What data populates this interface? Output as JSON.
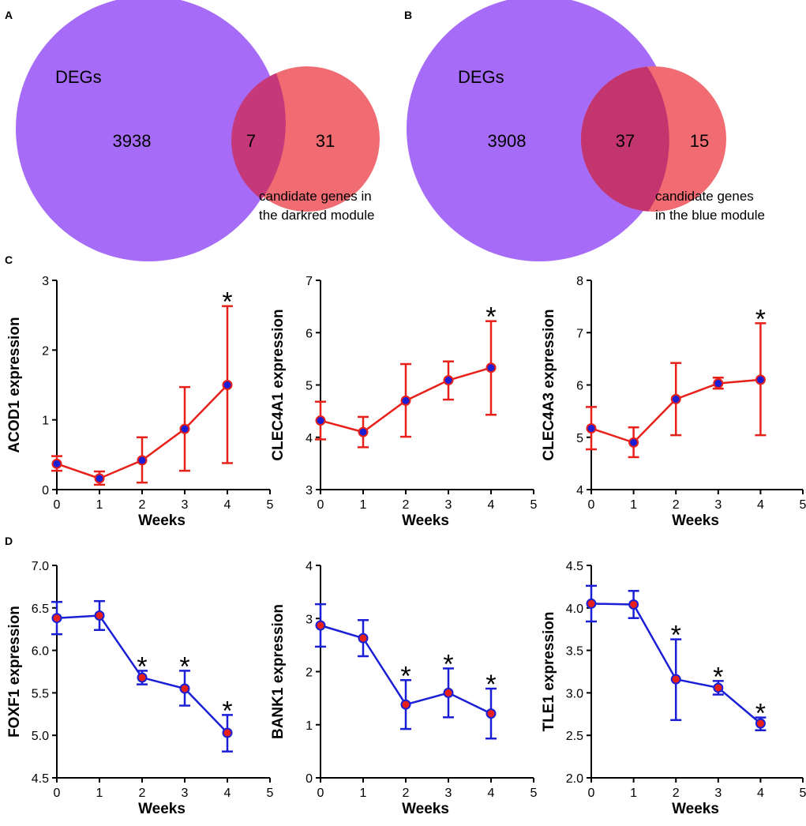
{
  "panels": {
    "A": "A",
    "B": "B",
    "C": "C",
    "D": "D"
  },
  "colors": {
    "purple": "#a66cf7",
    "salmon": "#f06c72",
    "overlap_a": "#c5397a",
    "overlap_b": "#c3356e",
    "red": "#e8201a",
    "blue": "#1a1fd6"
  },
  "venn": [
    {
      "panel": "A",
      "left_label": "DEGs",
      "left_count": "3938",
      "overlap_count": "7",
      "right_count": "31",
      "caption_line1": "candidate genes in",
      "caption_line2": "the darkred module"
    },
    {
      "panel": "B",
      "left_label": "DEGs",
      "left_count": "3908",
      "overlap_count": "37",
      "right_count": "15",
      "caption_line1": "candidate genes",
      "caption_line2": "in the blue module"
    }
  ],
  "chart_data": [
    {
      "type": "line",
      "panel": "C",
      "ylabel": "ACOD1 expression",
      "xlabel": "Weeks",
      "x": [
        0,
        1,
        2,
        3,
        4
      ],
      "series": [
        {
          "name": "ACOD1",
          "values": [
            0.37,
            0.16,
            0.42,
            0.87,
            1.5
          ],
          "err_upper": [
            0.48,
            0.26,
            0.75,
            1.47,
            2.63
          ],
          "err_lower": [
            0.27,
            0.07,
            0.1,
            0.27,
            0.38
          ]
        }
      ],
      "xlim": [
        0,
        5
      ],
      "ylim": [
        0,
        3
      ],
      "xticks": [
        "0",
        "1",
        "2",
        "3",
        "4",
        "5"
      ],
      "yticks": [
        "0",
        "1",
        "2",
        "3"
      ],
      "significant": [
        "",
        "",
        "",
        "",
        "*"
      ]
    },
    {
      "type": "line",
      "panel": "C",
      "ylabel": "CLEC4A1 expression",
      "xlabel": "Weeks",
      "x": [
        0,
        1,
        2,
        3,
        4
      ],
      "series": [
        {
          "name": "CLEC4A1",
          "values": [
            4.32,
            4.1,
            4.7,
            5.09,
            5.33
          ],
          "err_upper": [
            4.68,
            4.39,
            5.4,
            5.45,
            6.22
          ],
          "err_lower": [
            3.96,
            3.81,
            4.01,
            4.72,
            4.43
          ]
        }
      ],
      "xlim": [
        0,
        5
      ],
      "ylim": [
        3,
        7
      ],
      "xticks": [
        "0",
        "1",
        "2",
        "3",
        "4",
        "5"
      ],
      "yticks": [
        "3",
        "4",
        "5",
        "6",
        "7"
      ],
      "significant": [
        "",
        "",
        "",
        "",
        "*"
      ]
    },
    {
      "type": "line",
      "panel": "C",
      "ylabel": "CLEC4A3 expression",
      "xlabel": "Weeks",
      "x": [
        0,
        1,
        2,
        3,
        4
      ],
      "series": [
        {
          "name": "CLEC4A3",
          "values": [
            5.17,
            4.9,
            5.73,
            6.03,
            6.1
          ],
          "err_upper": [
            5.58,
            5.19,
            6.42,
            6.14,
            7.18
          ],
          "err_lower": [
            4.77,
            4.62,
            5.04,
            5.93,
            5.04
          ]
        }
      ],
      "xlim": [
        0,
        5
      ],
      "ylim": [
        4,
        8
      ],
      "xticks": [
        "0",
        "1",
        "2",
        "3",
        "4",
        "5"
      ],
      "yticks": [
        "4",
        "5",
        "6",
        "7",
        "8"
      ],
      "significant": [
        "",
        "",
        "",
        "",
        "*"
      ]
    },
    {
      "type": "line",
      "panel": "D",
      "ylabel": "FOXF1 expression",
      "xlabel": "Weeks",
      "x": [
        0,
        1,
        2,
        3,
        4
      ],
      "series": [
        {
          "name": "FOXF1",
          "values": [
            6.38,
            6.41,
            5.68,
            5.55,
            5.03
          ],
          "err_upper": [
            6.57,
            6.58,
            5.76,
            5.76,
            5.24
          ],
          "err_lower": [
            6.19,
            6.24,
            5.6,
            5.35,
            4.81
          ]
        }
      ],
      "xlim": [
        0,
        5
      ],
      "ylim": [
        4.5,
        7.0
      ],
      "xticks": [
        "0",
        "1",
        "2",
        "3",
        "4",
        "5"
      ],
      "yticks": [
        "4.5",
        "5.0",
        "5.5",
        "6.0",
        "6.5",
        "7.0"
      ],
      "significant": [
        "",
        "",
        "*",
        "*",
        "*"
      ]
    },
    {
      "type": "line",
      "panel": "D",
      "ylabel": "BANK1 expression",
      "xlabel": "Weeks",
      "x": [
        0,
        1,
        2,
        3,
        4
      ],
      "series": [
        {
          "name": "BANK1",
          "values": [
            2.87,
            2.63,
            1.38,
            1.6,
            1.21
          ],
          "err_upper": [
            3.27,
            2.97,
            1.84,
            2.06,
            1.68
          ],
          "err_lower": [
            2.47,
            2.29,
            0.92,
            1.14,
            0.74
          ]
        }
      ],
      "xlim": [
        0,
        5
      ],
      "ylim": [
        0,
        4
      ],
      "xticks": [
        "0",
        "1",
        "2",
        "3",
        "4",
        "5"
      ],
      "yticks": [
        "0",
        "1",
        "2",
        "3",
        "4"
      ],
      "significant": [
        "",
        "",
        "*",
        "*",
        "*"
      ]
    },
    {
      "type": "line",
      "panel": "D",
      "ylabel": "TLE1 expression",
      "xlabel": "Weeks",
      "x": [
        0,
        1,
        2,
        3,
        4
      ],
      "series": [
        {
          "name": "TLE1",
          "values": [
            4.05,
            4.04,
            3.16,
            3.06,
            2.64
          ],
          "err_upper": [
            4.26,
            4.2,
            3.63,
            3.14,
            2.71
          ],
          "err_lower": [
            3.84,
            3.88,
            2.68,
            2.98,
            2.56
          ]
        }
      ],
      "xlim": [
        0,
        5
      ],
      "ylim": [
        2.0,
        4.5
      ],
      "xticks": [
        "0",
        "1",
        "2",
        "3",
        "4",
        "5"
      ],
      "yticks": [
        "2.0",
        "2.5",
        "3.0",
        "3.5",
        "4.0",
        "4.5"
      ],
      "significant": [
        "",
        "",
        "*",
        "*",
        "*"
      ]
    }
  ]
}
